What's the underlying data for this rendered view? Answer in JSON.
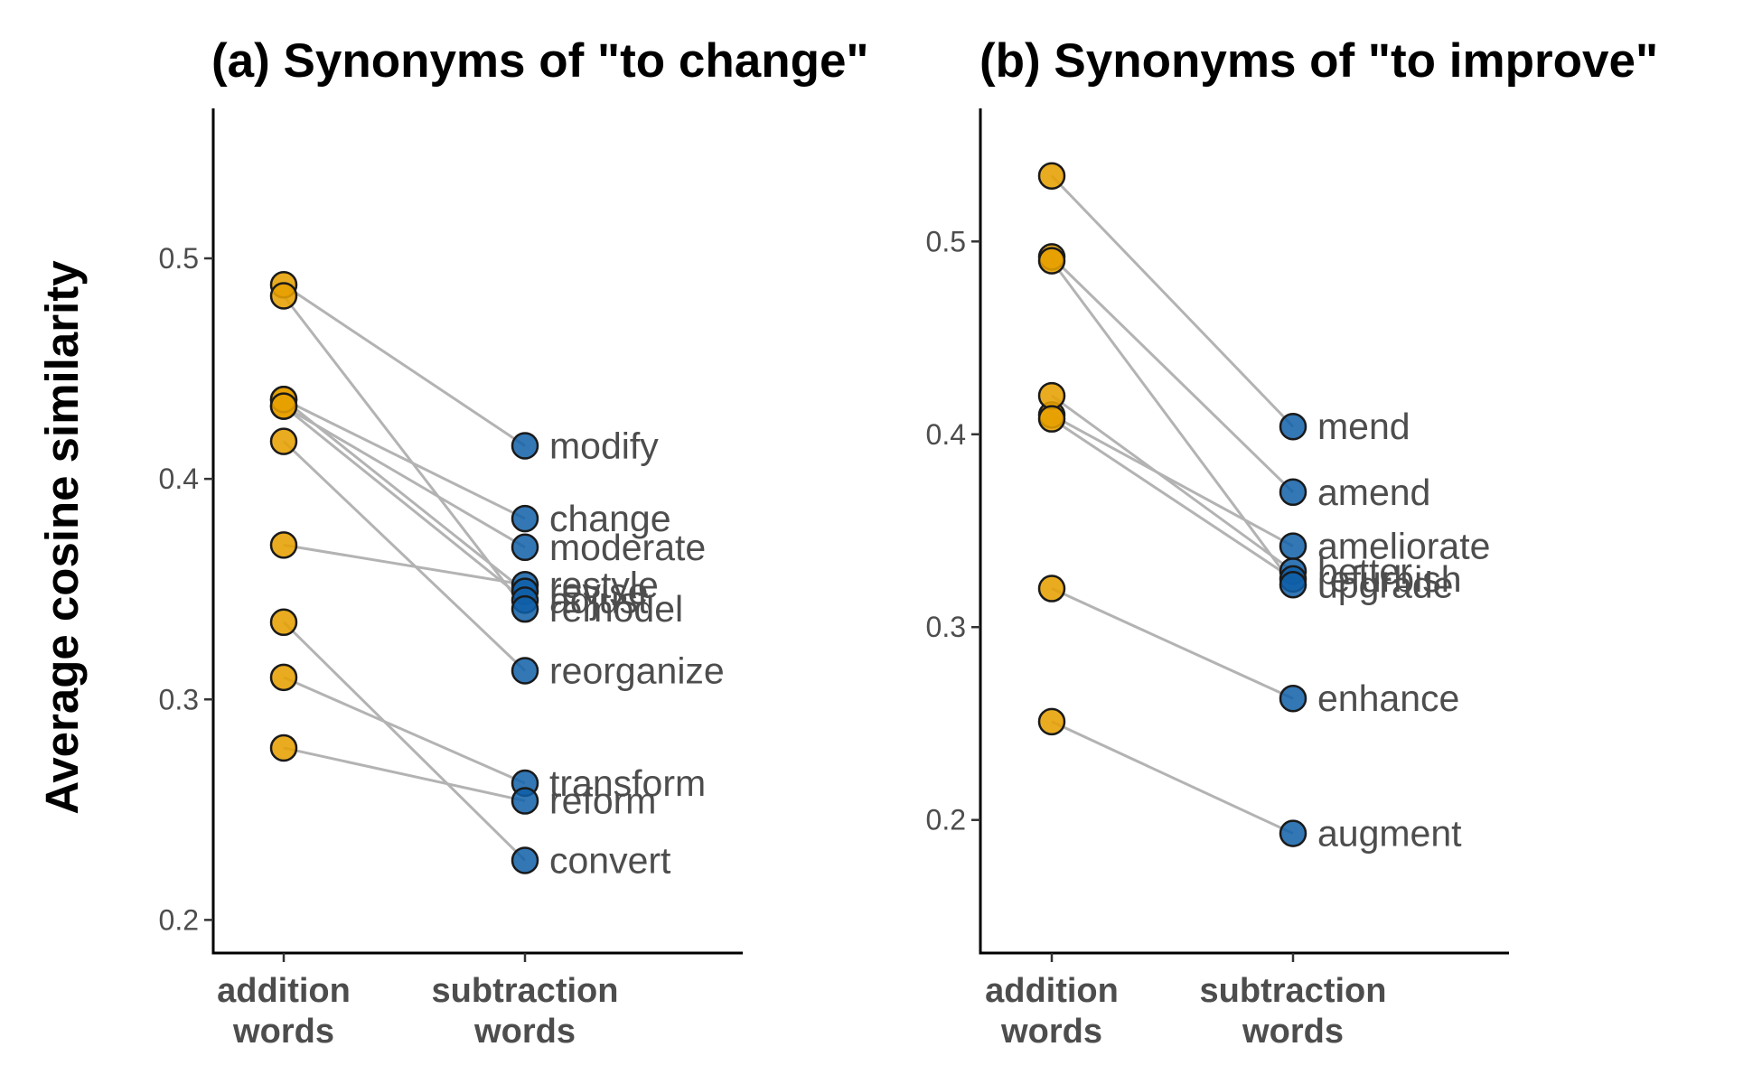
{
  "figure": {
    "ylabel": "Average cosine similarity"
  },
  "chart_data": [
    {
      "type": "scatter",
      "title": "(a) Synonyms of \"to change\"",
      "xlabel": "",
      "ylabel": "Average cosine similarity",
      "categories": [
        "addition\nwords",
        "subtraction\nwords"
      ],
      "ylim": [
        0.185,
        0.568
      ],
      "yticks": [
        0.2,
        0.3,
        0.4,
        0.5
      ],
      "grid": false,
      "legend": "none",
      "colors": {
        "addition": "#E69F00",
        "subtraction": "#0F5FA8",
        "link": "#B3B3B3"
      },
      "pairs": [
        {
          "word": "modify",
          "addition": 0.488,
          "subtraction": 0.415
        },
        {
          "word": "change",
          "addition": 0.436,
          "subtraction": 0.382
        },
        {
          "word": "moderate",
          "addition": 0.433,
          "subtraction": 0.369
        },
        {
          "word": "restyle",
          "addition": 0.37,
          "subtraction": 0.352
        },
        {
          "word": "revise",
          "addition": 0.436,
          "subtraction": 0.349
        },
        {
          "word": "adjust",
          "addition": 0.433,
          "subtraction": 0.345
        },
        {
          "word": "remodel",
          "addition": 0.483,
          "subtraction": 0.341
        },
        {
          "word": "reorganize",
          "addition": 0.417,
          "subtraction": 0.313
        },
        {
          "word": "transform",
          "addition": 0.31,
          "subtraction": 0.262
        },
        {
          "word": "reform",
          "addition": 0.278,
          "subtraction": 0.254
        },
        {
          "word": "convert",
          "addition": 0.335,
          "subtraction": 0.227
        }
      ]
    },
    {
      "type": "scatter",
      "title": "(b) Synonyms of \"to improve\"",
      "xlabel": "",
      "ylabel": "",
      "categories": [
        "addition\nwords",
        "subtraction\nwords"
      ],
      "ylim": [
        0.131,
        0.569
      ],
      "yticks": [
        0.2,
        0.3,
        0.4,
        0.5
      ],
      "grid": false,
      "legend": "none",
      "colors": {
        "addition": "#E69F00",
        "subtraction": "#0F5FA8",
        "link": "#B3B3B3"
      },
      "pairs": [
        {
          "word": "mend",
          "addition": 0.534,
          "subtraction": 0.404
        },
        {
          "word": "amend",
          "addition": 0.492,
          "subtraction": 0.37
        },
        {
          "word": "ameliorate",
          "addition": 0.41,
          "subtraction": 0.342
        },
        {
          "word": "better",
          "addition": 0.42,
          "subtraction": 0.329
        },
        {
          "word": "refurbish",
          "addition": 0.408,
          "subtraction": 0.325
        },
        {
          "word": "upgrade",
          "addition": 0.49,
          "subtraction": 0.322
        },
        {
          "word": "enhance",
          "addition": 0.32,
          "subtraction": 0.263
        },
        {
          "word": "augment",
          "addition": 0.251,
          "subtraction": 0.193
        }
      ]
    }
  ]
}
